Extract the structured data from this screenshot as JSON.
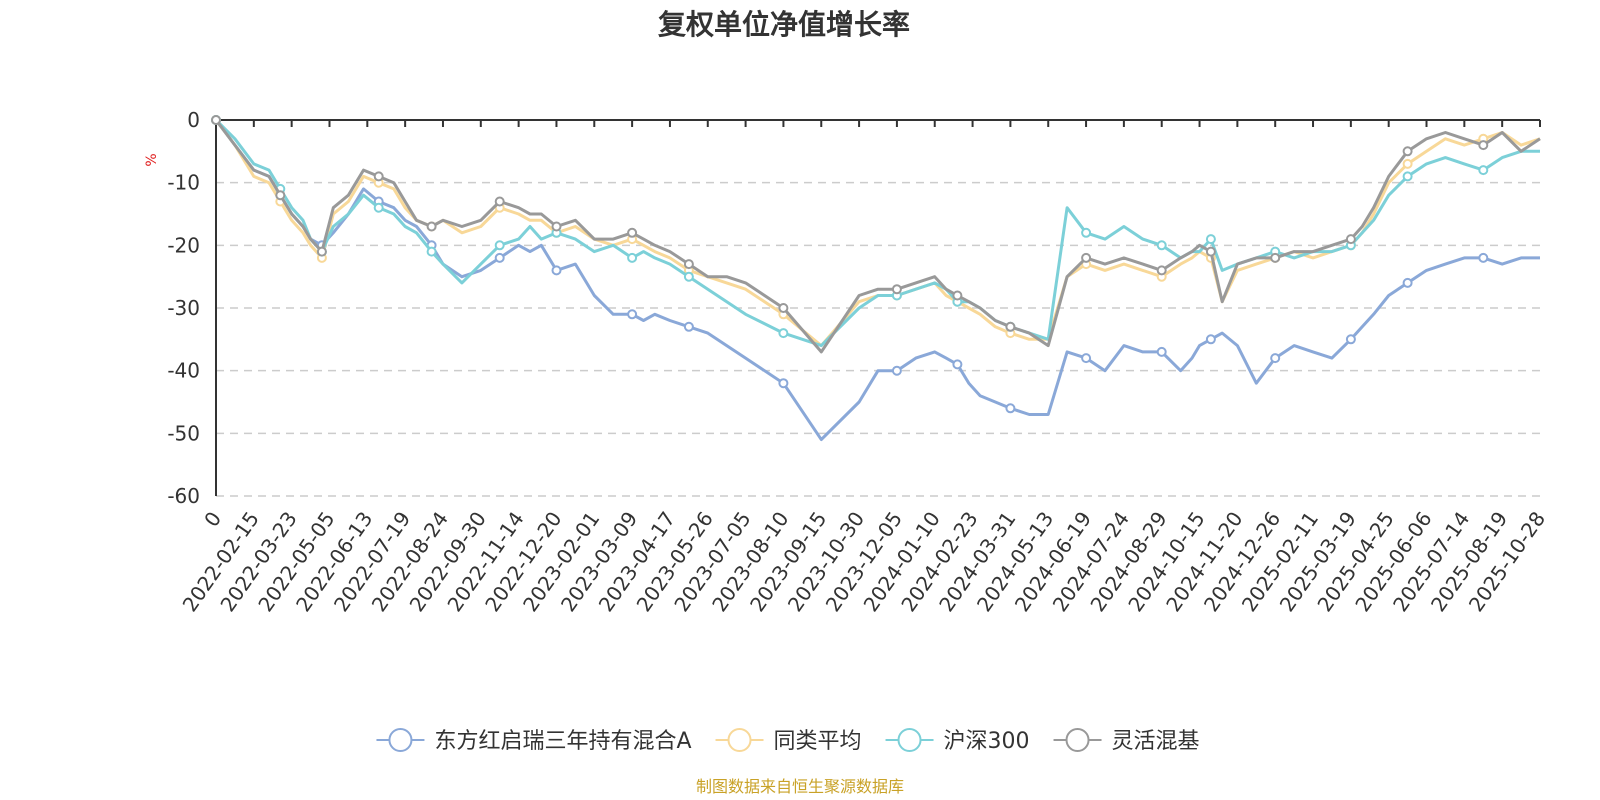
{
  "chart_data": {
    "type": "line",
    "title": "复权单位净值增长率",
    "ylabel": "%",
    "xlabel": "",
    "ylim": [
      -60,
      0
    ],
    "yticks": [
      0,
      -10,
      -20,
      -30,
      -40,
      -50,
      -60
    ],
    "grid": true,
    "legend_position": "bottom-center",
    "categories": [
      "0",
      "2022-02-15",
      "2022-03-23",
      "2022-05-05",
      "2022-06-13",
      "2022-07-19",
      "2022-08-24",
      "2022-09-30",
      "2022-11-14",
      "2022-12-20",
      "2023-02-01",
      "2023-03-09",
      "2023-04-17",
      "2023-05-26",
      "2023-07-05",
      "2023-08-10",
      "2023-09-15",
      "2023-10-30",
      "2023-12-05",
      "2024-01-10",
      "2024-02-23",
      "2024-03-31",
      "2024-05-13",
      "2024-06-19",
      "2024-07-24",
      "2024-08-29",
      "2024-10-15",
      "2024-11-20",
      "2024-12-26",
      "2025-02-11",
      "2025-03-19",
      "2025-04-25",
      "2025-06-06",
      "2025-07-14",
      "2025-08-19",
      "2025-10-28"
    ],
    "series": [
      {
        "name": "东方红启瑞三年持有混合A",
        "color": "#8aa8d8",
        "x": [
          0,
          0.5,
          1,
          1.4,
          1.7,
          2,
          2.3,
          2.5,
          2.8,
          3.1,
          3.5,
          3.9,
          4.3,
          4.7,
          5,
          5.3,
          5.7,
          6,
          6.5,
          7,
          7.5,
          8,
          8.3,
          8.6,
          9,
          9.5,
          10,
          10.5,
          11,
          11.3,
          11.6,
          12,
          12.5,
          13,
          13.5,
          14,
          15,
          16,
          17,
          17.5,
          18,
          18.5,
          19,
          19.3,
          19.6,
          19.9,
          20.2,
          20.6,
          21,
          21.5,
          22,
          22.5,
          23,
          23.5,
          24,
          24.5,
          25,
          25.5,
          25.8,
          26,
          26.3,
          26.6,
          27,
          27.5,
          28,
          28.5,
          29,
          29.5,
          30,
          30.3,
          30.6,
          31,
          31.5,
          32,
          32.5,
          33,
          33.5,
          34,
          34.5,
          35
        ],
        "y": [
          0,
          -4,
          -8,
          -9,
          -12,
          -15,
          -17,
          -19,
          -20,
          -18,
          -15,
          -11,
          -13,
          -14,
          -16,
          -17,
          -20,
          -23,
          -25,
          -24,
          -22,
          -20,
          -21,
          -20,
          -24,
          -23,
          -28,
          -31,
          -31,
          -32,
          -31,
          -32,
          -33,
          -34,
          -36,
          -38,
          -42,
          -51,
          -45,
          -40,
          -40,
          -38,
          -37,
          -38,
          -39,
          -42,
          -44,
          -45,
          -46,
          -47,
          -47,
          -37,
          -38,
          -40,
          -36,
          -37,
          -37,
          -40,
          -38,
          -36,
          -35,
          -34,
          -36,
          -42,
          -38,
          -36,
          -37,
          -38,
          -35,
          -33,
          -31,
          -28,
          -26,
          -24,
          -23,
          -22,
          -22,
          -23,
          -22,
          -22
        ]
      },
      {
        "name": "同类平均",
        "color": "#f8d898",
        "x": [
          0,
          0.5,
          1,
          1.4,
          1.7,
          2,
          2.3,
          2.5,
          2.8,
          3.1,
          3.5,
          3.9,
          4.3,
          4.7,
          5,
          5.3,
          5.7,
          6,
          6.5,
          7,
          7.5,
          8,
          8.3,
          8.6,
          9,
          9.5,
          10,
          10.5,
          11,
          11.3,
          11.6,
          12,
          12.5,
          13,
          13.5,
          14,
          15,
          16,
          17,
          17.5,
          18,
          18.5,
          19,
          19.3,
          19.6,
          19.9,
          20.2,
          20.6,
          21,
          21.5,
          22,
          22.5,
          23,
          23.5,
          24,
          24.5,
          25,
          25.5,
          25.8,
          26,
          26.3,
          26.6,
          27,
          27.5,
          28,
          28.5,
          29,
          29.5,
          30,
          30.3,
          30.6,
          31,
          31.5,
          32,
          32.5,
          33,
          33.5,
          34,
          34.5,
          35
        ],
        "y": [
          0,
          -4,
          -9,
          -10,
          -13,
          -16,
          -18,
          -20,
          -22,
          -15,
          -13,
          -9,
          -10,
          -11,
          -14,
          -16,
          -17,
          -16,
          -18,
          -17,
          -14,
          -15,
          -16,
          -16,
          -18,
          -17,
          -19,
          -20,
          -19,
          -20,
          -21,
          -22,
          -24,
          -25,
          -26,
          -27,
          -31,
          -36,
          -29,
          -28,
          -28,
          -27,
          -26,
          -28,
          -29,
          -30,
          -31,
          -33,
          -34,
          -35,
          -35,
          -25,
          -23,
          -24,
          -23,
          -24,
          -25,
          -23,
          -22,
          -21,
          -22,
          -29,
          -24,
          -23,
          -22,
          -21,
          -22,
          -21,
          -20,
          -18,
          -15,
          -10,
          -7,
          -5,
          -3,
          -4,
          -3,
          -2,
          -4,
          -3
        ]
      },
      {
        "name": "沪深300",
        "color": "#7cd0d8",
        "x": [
          0,
          0.5,
          1,
          1.4,
          1.7,
          2,
          2.3,
          2.5,
          2.8,
          3.1,
          3.5,
          3.9,
          4.3,
          4.7,
          5,
          5.3,
          5.7,
          6,
          6.5,
          7,
          7.5,
          8,
          8.3,
          8.6,
          9,
          9.5,
          10,
          10.5,
          11,
          11.3,
          11.6,
          12,
          12.5,
          13,
          13.5,
          14,
          15,
          16,
          17,
          17.5,
          18,
          18.5,
          19,
          19.3,
          19.6,
          19.9,
          20.2,
          20.6,
          21,
          21.5,
          22,
          22.5,
          23,
          23.5,
          24,
          24.5,
          25,
          25.5,
          25.8,
          26,
          26.3,
          26.6,
          27,
          27.5,
          28,
          28.5,
          29,
          29.5,
          30,
          30.3,
          30.6,
          31,
          31.5,
          32,
          32.5,
          33,
          33.5,
          34,
          34.5,
          35
        ],
        "y": [
          0,
          -3,
          -7,
          -8,
          -11,
          -14,
          -16,
          -19,
          -21,
          -17,
          -15,
          -12,
          -14,
          -15,
          -17,
          -18,
          -21,
          -23,
          -26,
          -23,
          -20,
          -19,
          -17,
          -19,
          -18,
          -19,
          -21,
          -20,
          -22,
          -21,
          -22,
          -23,
          -25,
          -27,
          -29,
          -31,
          -34,
          -36,
          -30,
          -28,
          -28,
          -27,
          -26,
          -27,
          -29,
          -29,
          -30,
          -32,
          -33,
          -34,
          -35,
          -14,
          -18,
          -19,
          -17,
          -19,
          -20,
          -22,
          -21,
          -21,
          -19,
          -24,
          -23,
          -22,
          -21,
          -22,
          -21,
          -21,
          -20,
          -18,
          -16,
          -12,
          -9,
          -7,
          -6,
          -7,
          -8,
          -6,
          -5,
          -5
        ]
      },
      {
        "name": "灵活混基",
        "color": "#999999",
        "x": [
          0,
          0.5,
          1,
          1.4,
          1.7,
          2,
          2.3,
          2.5,
          2.8,
          3.1,
          3.5,
          3.9,
          4.3,
          4.7,
          5,
          5.3,
          5.7,
          6,
          6.5,
          7,
          7.5,
          8,
          8.3,
          8.6,
          9,
          9.5,
          10,
          10.5,
          11,
          11.3,
          11.6,
          12,
          12.5,
          13,
          13.5,
          14,
          15,
          16,
          17,
          17.5,
          18,
          18.5,
          19,
          19.3,
          19.6,
          19.9,
          20.2,
          20.6,
          21,
          21.5,
          22,
          22.5,
          23,
          23.5,
          24,
          24.5,
          25,
          25.5,
          25.8,
          26,
          26.3,
          26.6,
          27,
          27.5,
          28,
          28.5,
          29,
          29.5,
          30,
          30.3,
          30.6,
          31,
          31.5,
          32,
          32.5,
          33,
          33.5,
          34,
          34.5,
          35
        ],
        "y": [
          0,
          -4,
          -8,
          -9,
          -12,
          -15,
          -17,
          -19,
          -21,
          -14,
          -12,
          -8,
          -9,
          -10,
          -13,
          -16,
          -17,
          -16,
          -17,
          -16,
          -13,
          -14,
          -15,
          -15,
          -17,
          -16,
          -19,
          -19,
          -18,
          -19,
          -20,
          -21,
          -23,
          -25,
          -25,
          -26,
          -30,
          -37,
          -28,
          -27,
          -27,
          -26,
          -25,
          -27,
          -28,
          -29,
          -30,
          -32,
          -33,
          -34,
          -36,
          -25,
          -22,
          -23,
          -22,
          -23,
          -24,
          -22,
          -21,
          -20,
          -21,
          -29,
          -23,
          -22,
          -22,
          -21,
          -21,
          -20,
          -19,
          -17,
          -14,
          -9,
          -5,
          -3,
          -2,
          -3,
          -4,
          -2,
          -5,
          -3
        ]
      }
    ]
  },
  "source_text": "制图数据来自恒生聚源数据库"
}
